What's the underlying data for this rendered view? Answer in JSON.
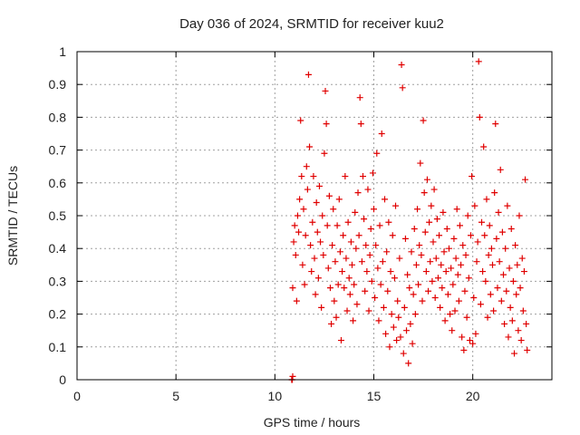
{
  "chart_data": {
    "type": "scatter",
    "title": "Day 036 of 2024, SRMTID for receiver kuu2",
    "xlabel": "GPS time / hours",
    "ylabel": "SRMTID / TECUs",
    "xlim": [
      0,
      24
    ],
    "ylim": [
      0,
      1
    ],
    "xticks": [
      "0",
      "5",
      "10",
      "15",
      "20"
    ],
    "yticks": [
      "0",
      "0.1",
      "0.2",
      "0.3",
      "0.4",
      "0.5",
      "0.6",
      "0.7",
      "0.8",
      "0.9",
      "1"
    ],
    "grid": true,
    "marker": "+",
    "colors": {
      "points": "#e00000",
      "grid": "#a0a0a0",
      "axes": "#000000"
    },
    "series": [
      {
        "name": "SRMTID",
        "points": [
          [
            10.85,
            0.0
          ],
          [
            10.88,
            0.0
          ],
          [
            10.9,
            0.01
          ],
          [
            10.9,
            0.28
          ],
          [
            10.95,
            0.42
          ],
          [
            11.0,
            0.47
          ],
          [
            11.05,
            0.38
          ],
          [
            11.1,
            0.24
          ],
          [
            11.15,
            0.5
          ],
          [
            11.2,
            0.45
          ],
          [
            11.25,
            0.55
          ],
          [
            11.3,
            0.79
          ],
          [
            11.35,
            0.62
          ],
          [
            11.4,
            0.35
          ],
          [
            11.45,
            0.52
          ],
          [
            11.5,
            0.29
          ],
          [
            11.55,
            0.44
          ],
          [
            11.6,
            0.65
          ],
          [
            11.65,
            0.58
          ],
          [
            11.7,
            0.93
          ],
          [
            11.75,
            0.71
          ],
          [
            11.8,
            0.41
          ],
          [
            11.85,
            0.33
          ],
          [
            11.9,
            0.48
          ],
          [
            11.95,
            0.62
          ],
          [
            12.0,
            0.37
          ],
          [
            12.05,
            0.26
          ],
          [
            12.1,
            0.54
          ],
          [
            12.15,
            0.45
          ],
          [
            12.2,
            0.31
          ],
          [
            12.25,
            0.59
          ],
          [
            12.3,
            0.42
          ],
          [
            12.35,
            0.22
          ],
          [
            12.4,
            0.5
          ],
          [
            12.45,
            0.38
          ],
          [
            12.5,
            0.69
          ],
          [
            12.55,
            0.88
          ],
          [
            12.6,
            0.78
          ],
          [
            12.65,
            0.47
          ],
          [
            12.7,
            0.34
          ],
          [
            12.75,
            0.56
          ],
          [
            12.8,
            0.28
          ],
          [
            12.85,
            0.17
          ],
          [
            12.9,
            0.41
          ],
          [
            12.95,
            0.52
          ],
          [
            13.0,
            0.24
          ],
          [
            13.05,
            0.36
          ],
          [
            13.1,
            0.19
          ],
          [
            13.15,
            0.47
          ],
          [
            13.2,
            0.29
          ],
          [
            13.25,
            0.55
          ],
          [
            13.3,
            0.39
          ],
          [
            13.35,
            0.12
          ],
          [
            13.4,
            0.33
          ],
          [
            13.45,
            0.44
          ],
          [
            13.5,
            0.28
          ],
          [
            13.55,
            0.62
          ],
          [
            13.6,
            0.37
          ],
          [
            13.65,
            0.21
          ],
          [
            13.7,
            0.48
          ],
          [
            13.75,
            0.31
          ],
          [
            13.8,
            0.26
          ],
          [
            13.85,
            0.42
          ],
          [
            13.9,
            0.35
          ],
          [
            13.95,
            0.18
          ],
          [
            14.0,
            0.29
          ],
          [
            14.05,
            0.51
          ],
          [
            14.1,
            0.4
          ],
          [
            14.15,
            0.23
          ],
          [
            14.2,
            0.57
          ],
          [
            14.25,
            0.44
          ],
          [
            14.3,
            0.86
          ],
          [
            14.35,
            0.78
          ],
          [
            14.4,
            0.36
          ],
          [
            14.45,
            0.62
          ],
          [
            14.5,
            0.49
          ],
          [
            14.55,
            0.27
          ],
          [
            14.6,
            0.41
          ],
          [
            14.65,
            0.33
          ],
          [
            14.7,
            0.58
          ],
          [
            14.75,
            0.21
          ],
          [
            14.8,
            0.38
          ],
          [
            14.85,
            0.46
          ],
          [
            14.9,
            0.3
          ],
          [
            14.95,
            0.63
          ],
          [
            15.0,
            0.52
          ],
          [
            15.05,
            0.25
          ],
          [
            15.1,
            0.41
          ],
          [
            15.15,
            0.69
          ],
          [
            15.2,
            0.34
          ],
          [
            15.25,
            0.18
          ],
          [
            15.3,
            0.47
          ],
          [
            15.35,
            0.29
          ],
          [
            15.4,
            0.75
          ],
          [
            15.45,
            0.36
          ],
          [
            15.5,
            0.22
          ],
          [
            15.55,
            0.55
          ],
          [
            15.6,
            0.14
          ],
          [
            15.65,
            0.39
          ],
          [
            15.7,
            0.27
          ],
          [
            15.75,
            0.48
          ],
          [
            15.8,
            0.1
          ],
          [
            15.85,
            0.33
          ],
          [
            15.9,
            0.2
          ],
          [
            15.95,
            0.44
          ],
          [
            16.0,
            0.16
          ],
          [
            16.05,
            0.31
          ],
          [
            16.1,
            0.53
          ],
          [
            16.15,
            0.12
          ],
          [
            16.2,
            0.24
          ],
          [
            16.25,
            0.19
          ],
          [
            16.3,
            0.37
          ],
          [
            16.35,
            0.13
          ],
          [
            16.4,
            0.96
          ],
          [
            16.45,
            0.89
          ],
          [
            16.5,
            0.08
          ],
          [
            16.55,
            0.22
          ],
          [
            16.6,
            0.43
          ],
          [
            16.65,
            0.15
          ],
          [
            16.7,
            0.32
          ],
          [
            16.75,
            0.05
          ],
          [
            16.8,
            0.28
          ],
          [
            16.85,
            0.17
          ],
          [
            16.9,
            0.39
          ],
          [
            16.95,
            0.11
          ],
          [
            17.0,
            0.26
          ],
          [
            17.05,
            0.46
          ],
          [
            17.1,
            0.2
          ],
          [
            17.15,
            0.35
          ],
          [
            17.2,
            0.52
          ],
          [
            17.25,
            0.29
          ],
          [
            17.3,
            0.41
          ],
          [
            17.35,
            0.66
          ],
          [
            17.4,
            0.38
          ],
          [
            17.45,
            0.24
          ],
          [
            17.5,
            0.79
          ],
          [
            17.55,
            0.57
          ],
          [
            17.6,
            0.45
          ],
          [
            17.65,
            0.33
          ],
          [
            17.7,
            0.61
          ],
          [
            17.75,
            0.27
          ],
          [
            17.8,
            0.48
          ],
          [
            17.85,
            0.36
          ],
          [
            17.9,
            0.53
          ],
          [
            17.95,
            0.3
          ],
          [
            18.0,
            0.42
          ],
          [
            18.05,
            0.58
          ],
          [
            18.1,
            0.25
          ],
          [
            18.15,
            0.37
          ],
          [
            18.2,
            0.49
          ],
          [
            18.25,
            0.31
          ],
          [
            18.3,
            0.44
          ],
          [
            18.35,
            0.22
          ],
          [
            18.4,
            0.35
          ],
          [
            18.45,
            0.28
          ],
          [
            18.5,
            0.51
          ],
          [
            18.55,
            0.39
          ],
          [
            18.6,
            0.18
          ],
          [
            18.65,
            0.33
          ],
          [
            18.7,
            0.46
          ],
          [
            18.75,
            0.26
          ],
          [
            18.8,
            0.4
          ],
          [
            18.85,
            0.2
          ],
          [
            18.9,
            0.34
          ],
          [
            18.95,
            0.15
          ],
          [
            19.0,
            0.29
          ],
          [
            19.05,
            0.43
          ],
          [
            19.1,
            0.21
          ],
          [
            19.15,
            0.37
          ],
          [
            19.2,
            0.52
          ],
          [
            19.25,
            0.32
          ],
          [
            19.3,
            0.24
          ],
          [
            19.35,
            0.47
          ],
          [
            19.4,
            0.35
          ],
          [
            19.45,
            0.13
          ],
          [
            19.5,
            0.41
          ],
          [
            19.55,
            0.09
          ],
          [
            19.6,
            0.27
          ],
          [
            19.65,
            0.38
          ],
          [
            19.7,
            0.19
          ],
          [
            19.75,
            0.5
          ],
          [
            19.8,
            0.31
          ],
          [
            19.85,
            0.12
          ],
          [
            19.9,
            0.44
          ],
          [
            19.95,
            0.62
          ],
          [
            20.0,
            0.11
          ],
          [
            20.05,
            0.25
          ],
          [
            20.1,
            0.53
          ],
          [
            20.15,
            0.14
          ],
          [
            20.2,
            0.36
          ],
          [
            20.25,
            0.42
          ],
          [
            20.3,
            0.97
          ],
          [
            20.35,
            0.8
          ],
          [
            20.4,
            0.23
          ],
          [
            20.45,
            0.48
          ],
          [
            20.5,
            0.33
          ],
          [
            20.55,
            0.71
          ],
          [
            20.6,
            0.44
          ],
          [
            20.65,
            0.3
          ],
          [
            20.7,
            0.55
          ],
          [
            20.75,
            0.19
          ],
          [
            20.8,
            0.38
          ],
          [
            20.85,
            0.47
          ],
          [
            20.9,
            0.26
          ],
          [
            20.95,
            0.4
          ],
          [
            21.0,
            0.35
          ],
          [
            21.05,
            0.21
          ],
          [
            21.1,
            0.57
          ],
          [
            21.15,
            0.78
          ],
          [
            21.2,
            0.43
          ],
          [
            21.25,
            0.28
          ],
          [
            21.3,
            0.51
          ],
          [
            21.35,
            0.36
          ],
          [
            21.4,
            0.64
          ],
          [
            21.45,
            0.24
          ],
          [
            21.5,
            0.45
          ],
          [
            21.55,
            0.32
          ],
          [
            21.6,
            0.17
          ],
          [
            21.65,
            0.4
          ],
          [
            21.7,
            0.27
          ],
          [
            21.75,
            0.53
          ],
          [
            21.8,
            0.13
          ],
          [
            21.85,
            0.34
          ],
          [
            21.9,
            0.22
          ],
          [
            21.95,
            0.46
          ],
          [
            22.0,
            0.18
          ],
          [
            22.05,
            0.3
          ],
          [
            22.1,
            0.08
          ],
          [
            22.15,
            0.41
          ],
          [
            22.2,
            0.26
          ],
          [
            22.25,
            0.35
          ],
          [
            22.3,
            0.15
          ],
          [
            22.35,
            0.5
          ],
          [
            22.4,
            0.28
          ],
          [
            22.45,
            0.12
          ],
          [
            22.5,
            0.37
          ],
          [
            22.55,
            0.21
          ],
          [
            22.6,
            0.33
          ],
          [
            22.65,
            0.61
          ],
          [
            22.7,
            0.17
          ],
          [
            22.75,
            0.09
          ]
        ]
      }
    ]
  }
}
